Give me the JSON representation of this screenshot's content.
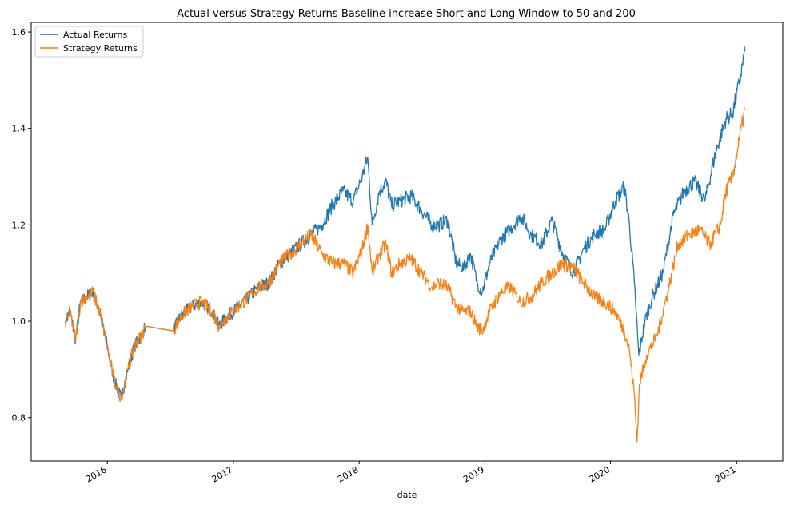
{
  "chart_data": {
    "type": "line",
    "title": "Actual versus Strategy Returns Baseline increase Short and Long Window to 50 and 200",
    "xlabel": "date",
    "ylabel": "",
    "x_ticks": [
      "2016",
      "2017",
      "2018",
      "2019",
      "2020",
      "2021"
    ],
    "y_ticks": [
      0.8,
      1.0,
      1.2,
      1.4,
      1.6
    ],
    "xlim": [
      "2015-05-25",
      "2021-05-15"
    ],
    "ylim": [
      0.71,
      1.62
    ],
    "grid": false,
    "legend": "top-left",
    "series": [
      {
        "name": "Actual Returns",
        "color": "#1f77b4",
        "points": [
          [
            "2015-09-01",
            1.0
          ],
          [
            "2015-09-15",
            1.02
          ],
          [
            "2015-10-01",
            0.96
          ],
          [
            "2015-10-15",
            1.04
          ],
          [
            "2015-11-01",
            1.05
          ],
          [
            "2015-11-20",
            1.06
          ],
          [
            "2015-12-10",
            1.02
          ],
          [
            "2015-12-31",
            0.95
          ],
          [
            "2016-01-20",
            0.88
          ],
          [
            "2016-02-10",
            0.84
          ],
          [
            "2016-03-01",
            0.9
          ],
          [
            "2016-03-20",
            0.95
          ],
          [
            "2016-04-10",
            0.97
          ],
          [
            "2016-04-20",
            0.99
          ],
          [
            "2016-07-10",
            0.98
          ],
          [
            "2016-08-01",
            1.01
          ],
          [
            "2016-09-01",
            1.03
          ],
          [
            "2016-10-01",
            1.04
          ],
          [
            "2016-11-01",
            1.02
          ],
          [
            "2016-11-20",
            0.99
          ],
          [
            "2016-12-15",
            1.01
          ],
          [
            "2017-01-15",
            1.03
          ],
          [
            "2017-02-15",
            1.05
          ],
          [
            "2017-03-15",
            1.07
          ],
          [
            "2017-04-15",
            1.08
          ],
          [
            "2017-05-15",
            1.12
          ],
          [
            "2017-06-15",
            1.14
          ],
          [
            "2017-07-15",
            1.16
          ],
          [
            "2017-08-15",
            1.18
          ],
          [
            "2017-09-15",
            1.2
          ],
          [
            "2017-10-15",
            1.24
          ],
          [
            "2017-11-15",
            1.27
          ],
          [
            "2017-12-15",
            1.25
          ],
          [
            "2018-01-10",
            1.3
          ],
          [
            "2018-01-26",
            1.34
          ],
          [
            "2018-02-08",
            1.2
          ],
          [
            "2018-03-01",
            1.27
          ],
          [
            "2018-03-20",
            1.29
          ],
          [
            "2018-04-05",
            1.24
          ],
          [
            "2018-05-01",
            1.25
          ],
          [
            "2018-06-01",
            1.26
          ],
          [
            "2018-07-01",
            1.23
          ],
          [
            "2018-08-01",
            1.2
          ],
          [
            "2018-08-20",
            1.2
          ],
          [
            "2018-09-15",
            1.21
          ],
          [
            "2018-10-10",
            1.12
          ],
          [
            "2018-11-01",
            1.11
          ],
          [
            "2018-11-20",
            1.14
          ],
          [
            "2018-12-10",
            1.08
          ],
          [
            "2018-12-24",
            1.06
          ],
          [
            "2019-01-15",
            1.12
          ],
          [
            "2019-02-15",
            1.17
          ],
          [
            "2019-03-15",
            1.19
          ],
          [
            "2019-04-15",
            1.22
          ],
          [
            "2019-05-15",
            1.18
          ],
          [
            "2019-06-15",
            1.16
          ],
          [
            "2019-07-15",
            1.21
          ],
          [
            "2019-08-15",
            1.14
          ],
          [
            "2019-09-15",
            1.1
          ],
          [
            "2019-10-15",
            1.15
          ],
          [
            "2019-11-15",
            1.18
          ],
          [
            "2019-12-15",
            1.19
          ],
          [
            "2020-01-15",
            1.25
          ],
          [
            "2020-02-10",
            1.28
          ],
          [
            "2020-02-25",
            1.2
          ],
          [
            "2020-03-10",
            1.08
          ],
          [
            "2020-03-23",
            0.93
          ],
          [
            "2020-04-10",
            1.0
          ],
          [
            "2020-05-01",
            1.05
          ],
          [
            "2020-06-01",
            1.1
          ],
          [
            "2020-07-01",
            1.22
          ],
          [
            "2020-08-01",
            1.27
          ],
          [
            "2020-09-01",
            1.29
          ],
          [
            "2020-10-01",
            1.25
          ],
          [
            "2020-11-01",
            1.35
          ],
          [
            "2020-12-01",
            1.42
          ],
          [
            "2020-12-20",
            1.43
          ],
          [
            "2021-01-10",
            1.5
          ],
          [
            "2021-01-25",
            1.56
          ]
        ]
      },
      {
        "name": "Strategy Returns",
        "color": "#ff7f0e",
        "points": [
          [
            "2015-09-01",
            1.0
          ],
          [
            "2015-09-15",
            1.02
          ],
          [
            "2015-10-01",
            0.96
          ],
          [
            "2015-10-15",
            1.04
          ],
          [
            "2015-11-01",
            1.05
          ],
          [
            "2015-11-20",
            1.06
          ],
          [
            "2015-12-10",
            1.02
          ],
          [
            "2015-12-31",
            0.95
          ],
          [
            "2016-01-20",
            0.88
          ],
          [
            "2016-02-10",
            0.84
          ],
          [
            "2016-03-01",
            0.9
          ],
          [
            "2016-03-20",
            0.95
          ],
          [
            "2016-04-10",
            0.97
          ],
          [
            "2016-04-20",
            0.99
          ],
          [
            "2016-07-10",
            0.98
          ],
          [
            "2016-08-01",
            1.01
          ],
          [
            "2016-09-01",
            1.03
          ],
          [
            "2016-10-01",
            1.04
          ],
          [
            "2016-11-01",
            1.02
          ],
          [
            "2016-11-20",
            0.99
          ],
          [
            "2016-12-15",
            1.01
          ],
          [
            "2017-01-15",
            1.03
          ],
          [
            "2017-02-15",
            1.05
          ],
          [
            "2017-03-15",
            1.07
          ],
          [
            "2017-04-15",
            1.08
          ],
          [
            "2017-05-15",
            1.12
          ],
          [
            "2017-06-15",
            1.14
          ],
          [
            "2017-07-15",
            1.16
          ],
          [
            "2017-08-15",
            1.18
          ],
          [
            "2017-09-15",
            1.14
          ],
          [
            "2017-10-15",
            1.12
          ],
          [
            "2017-11-15",
            1.12
          ],
          [
            "2017-12-15",
            1.1
          ],
          [
            "2018-01-10",
            1.15
          ],
          [
            "2018-01-26",
            1.2
          ],
          [
            "2018-02-08",
            1.1
          ],
          [
            "2018-03-01",
            1.14
          ],
          [
            "2018-03-20",
            1.16
          ],
          [
            "2018-04-05",
            1.1
          ],
          [
            "2018-05-01",
            1.12
          ],
          [
            "2018-06-01",
            1.13
          ],
          [
            "2018-07-01",
            1.1
          ],
          [
            "2018-08-01",
            1.07
          ],
          [
            "2018-08-20",
            1.08
          ],
          [
            "2018-09-15",
            1.07
          ],
          [
            "2018-10-10",
            1.03
          ],
          [
            "2018-11-01",
            1.02
          ],
          [
            "2018-11-20",
            1.02
          ],
          [
            "2018-12-10",
            0.99
          ],
          [
            "2018-12-24",
            0.98
          ],
          [
            "2019-01-15",
            1.02
          ],
          [
            "2019-02-15",
            1.06
          ],
          [
            "2019-03-15",
            1.07
          ],
          [
            "2019-04-15",
            1.04
          ],
          [
            "2019-05-15",
            1.05
          ],
          [
            "2019-06-15",
            1.08
          ],
          [
            "2019-07-15",
            1.1
          ],
          [
            "2019-08-15",
            1.12
          ],
          [
            "2019-09-15",
            1.11
          ],
          [
            "2019-10-15",
            1.08
          ],
          [
            "2019-11-15",
            1.05
          ],
          [
            "2019-12-15",
            1.04
          ],
          [
            "2020-01-15",
            1.02
          ],
          [
            "2020-02-10",
            0.98
          ],
          [
            "2020-02-25",
            0.94
          ],
          [
            "2020-03-10",
            0.85
          ],
          [
            "2020-03-18",
            0.75
          ],
          [
            "2020-03-25",
            0.87
          ],
          [
            "2020-04-15",
            0.93
          ],
          [
            "2020-05-15",
            0.97
          ],
          [
            "2020-06-15",
            1.06
          ],
          [
            "2020-07-15",
            1.16
          ],
          [
            "2020-08-15",
            1.18
          ],
          [
            "2020-09-15",
            1.19
          ],
          [
            "2020-10-15",
            1.16
          ],
          [
            "2020-11-15",
            1.2
          ],
          [
            "2020-12-01",
            1.27
          ],
          [
            "2020-12-20",
            1.3
          ],
          [
            "2021-01-10",
            1.38
          ],
          [
            "2021-01-25",
            1.44
          ]
        ]
      }
    ]
  }
}
